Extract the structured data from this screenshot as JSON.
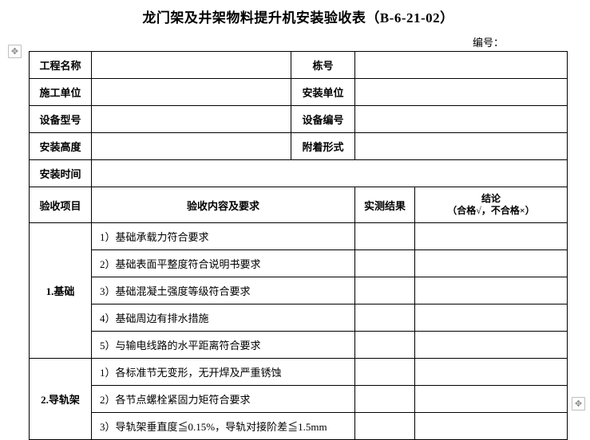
{
  "title": "龙门架及井架物料提升机安装验收表（B-6-21-02）",
  "docno_label": "编号：",
  "info_rows": [
    {
      "l1": "工程名称",
      "l2": "栋号"
    },
    {
      "l1": "施工单位",
      "l2": "安装单位"
    },
    {
      "l1": "设备型号",
      "l2": "设备编号"
    },
    {
      "l1": "安装高度",
      "l2": "附着形式"
    }
  ],
  "install_time_label": "安装时间",
  "headers": {
    "project": "验收项目",
    "content": "验收内容及要求",
    "result": "实测结果",
    "conclusion": "结论\n（合格√，不合格×）"
  },
  "sections": [
    {
      "name": "1.基础",
      "items": [
        "1）基础承载力符合要求",
        "2）基础表面平整度符合说明书要求",
        "3）基础混凝土强度等级符合要求",
        "4）基础周边有排水措施",
        "5）与输电线路的水平距离符合要求"
      ]
    },
    {
      "name": "2.导轨架",
      "items": [
        "1）各标准节无变形，无开焊及严重锈蚀",
        "2）各节点螺栓紧固力矩符合要求",
        "3）导轨架垂直度≦0.15%，导轨对接阶差≦1.5mm"
      ]
    }
  ],
  "handle_glyph": "✥",
  "colors": {
    "border": "#000000",
    "bg": "#ffffff"
  }
}
